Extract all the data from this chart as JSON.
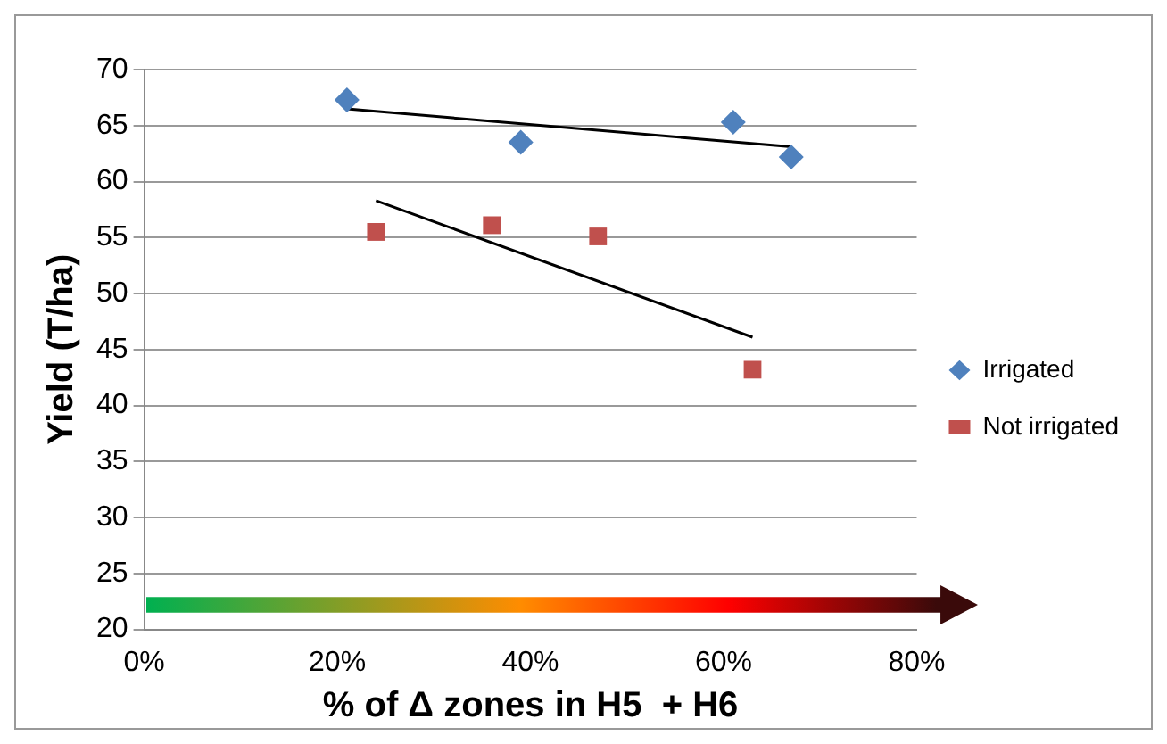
{
  "chart_data": {
    "type": "scatter",
    "xlabel": "% of Δ zones in H5  + H6",
    "ylabel": "Yield (T/ha)",
    "xlim": [
      0,
      80
    ],
    "xticks": [
      {
        "value": 0,
        "label": "0%"
      },
      {
        "value": 20,
        "label": "20%"
      },
      {
        "value": 40,
        "label": "40%"
      },
      {
        "value": 60,
        "label": "60%"
      },
      {
        "value": 80,
        "label": "80%"
      }
    ],
    "ylim": [
      20,
      70
    ],
    "yticks": [
      20,
      25,
      30,
      35,
      40,
      45,
      50,
      55,
      60,
      65,
      70
    ],
    "grid": "y",
    "legend": "right",
    "series": [
      {
        "name": "Irrigated",
        "color": "#4f81bd",
        "marker": "diamond",
        "x": [
          21,
          39,
          61,
          67
        ],
        "values": [
          67.3,
          63.5,
          65.3,
          62.2
        ]
      },
      {
        "name": "Not irrigated",
        "color": "#c0504d",
        "marker": "square",
        "x": [
          24,
          36,
          47,
          63
        ],
        "values": [
          55.5,
          56.1,
          55.1,
          43.2
        ]
      },
      {
        "type": "line",
        "color": "#000000",
        "marker": "none",
        "x": [
          21,
          67
        ],
        "values": [
          66.5,
          63.1
        ]
      },
      {
        "type": "line",
        "color": "#000000",
        "marker": "none",
        "x": [
          24,
          63
        ],
        "values": [
          58.3,
          46.1
        ]
      }
    ]
  }
}
